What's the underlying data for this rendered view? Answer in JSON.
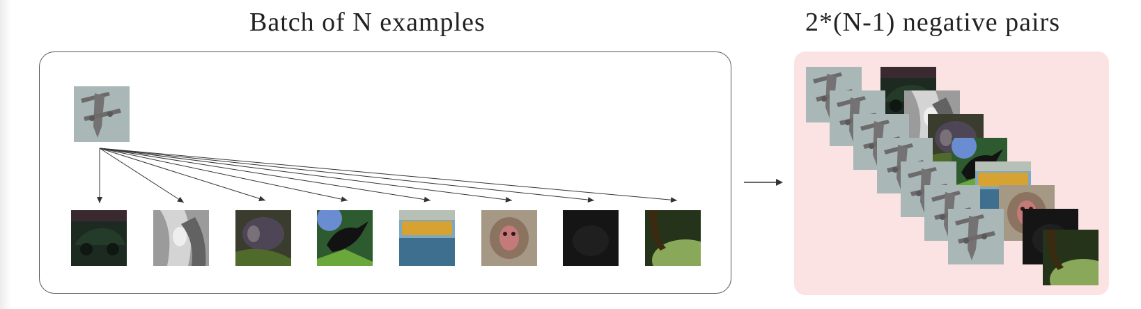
{
  "titles": {
    "batch": "Batch of N examples",
    "negatives": "2*(N-1) negative pairs"
  },
  "anchor": {
    "name": "airplane-thumbnail",
    "icon": "airplane-icon"
  },
  "batch_examples": [
    {
      "name": "car-thumbnail",
      "icon": "car-icon"
    },
    {
      "name": "grayscale-animal-thumbnail",
      "icon": "animal-icon"
    },
    {
      "name": "monkey-dark-thumbnail",
      "icon": "monkey-icon"
    },
    {
      "name": "bird-thumbnail",
      "icon": "bird-icon"
    },
    {
      "name": "truck-thumbnail",
      "icon": "truck-icon"
    },
    {
      "name": "monkey-face-thumbnail",
      "icon": "monkey-face-icon"
    },
    {
      "name": "dark-scene-thumbnail",
      "icon": "dark-scene-icon"
    },
    {
      "name": "frog-thumbnail",
      "icon": "frog-icon"
    }
  ],
  "colors": {
    "panel_pink": "#fbe3e3",
    "box_border": "#555555",
    "arrow": "#333333"
  }
}
